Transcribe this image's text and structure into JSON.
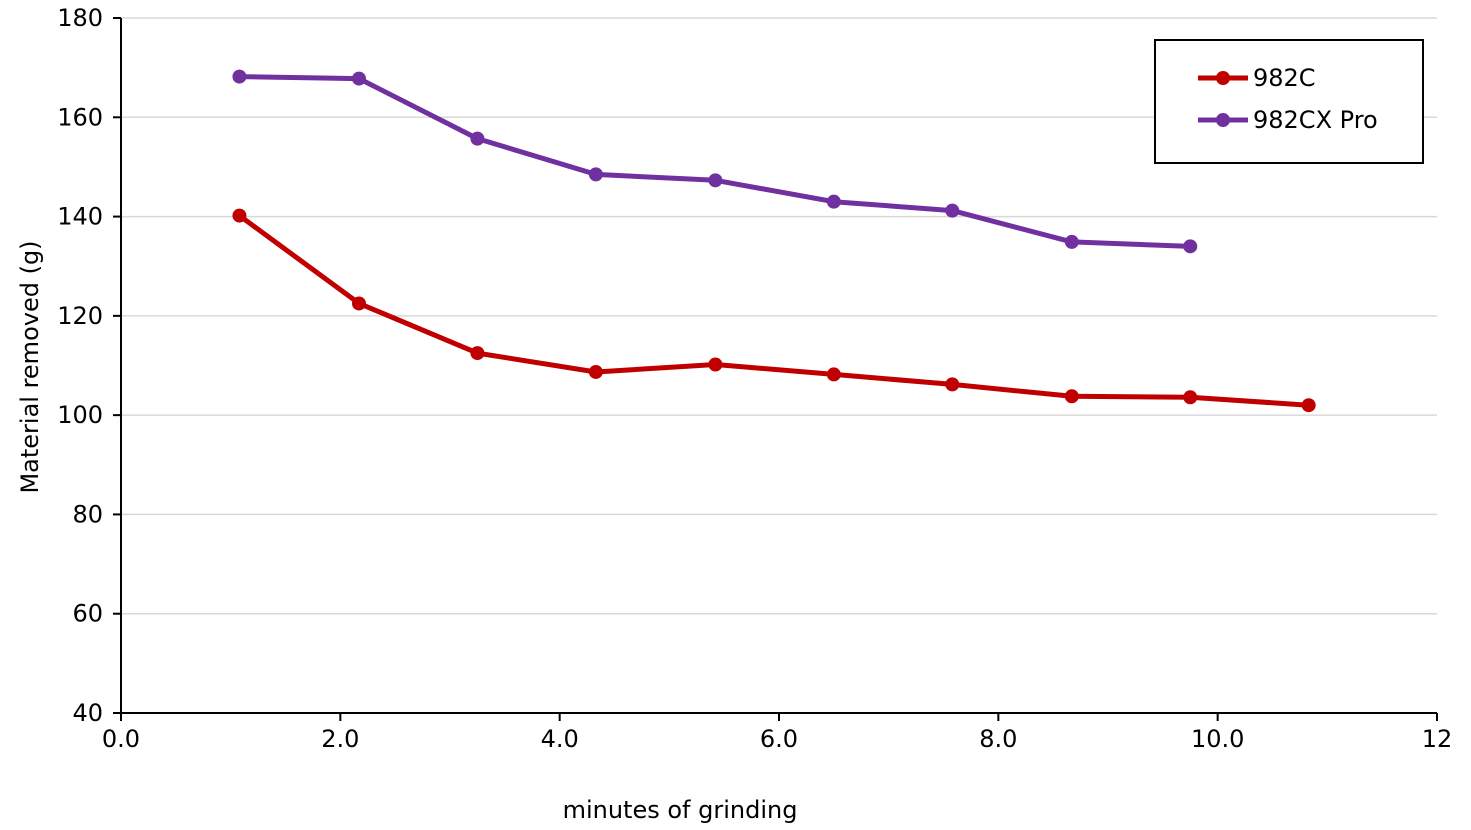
{
  "chart_data": {
    "type": "line",
    "title": "",
    "xlabel": "minutes of grinding",
    "ylabel": "Material removed (g)",
    "xlim": [
      0,
      12
    ],
    "ylim": [
      40,
      180
    ],
    "x_ticks": [
      "0.0",
      "2.0",
      "4.0",
      "6.0",
      "8.0",
      "10.0",
      "12"
    ],
    "y_ticks": [
      "40",
      "60",
      "80",
      "100",
      "120",
      "140",
      "160",
      "180"
    ],
    "grid": "horizontal",
    "legend_position": "top-right",
    "series": [
      {
        "name": "982C",
        "color": "#c00000",
        "points": [
          [
            1.08,
            140.2
          ],
          [
            2.17,
            122.5
          ],
          [
            3.25,
            112.5
          ],
          [
            4.33,
            108.7
          ],
          [
            5.42,
            110.2
          ],
          [
            6.5,
            108.2
          ],
          [
            7.58,
            106.2
          ],
          [
            8.67,
            103.8
          ],
          [
            9.75,
            103.6
          ],
          [
            10.83,
            102.0
          ]
        ]
      },
      {
        "name": "982CX Pro",
        "color": "#7030a0",
        "points": [
          [
            1.08,
            168.2
          ],
          [
            2.17,
            167.8
          ],
          [
            3.25,
            155.7
          ],
          [
            4.33,
            148.5
          ],
          [
            5.42,
            147.3
          ],
          [
            6.5,
            143.0
          ],
          [
            7.58,
            141.2
          ],
          [
            8.67,
            134.9
          ],
          [
            9.75,
            134.0
          ]
        ]
      }
    ]
  }
}
